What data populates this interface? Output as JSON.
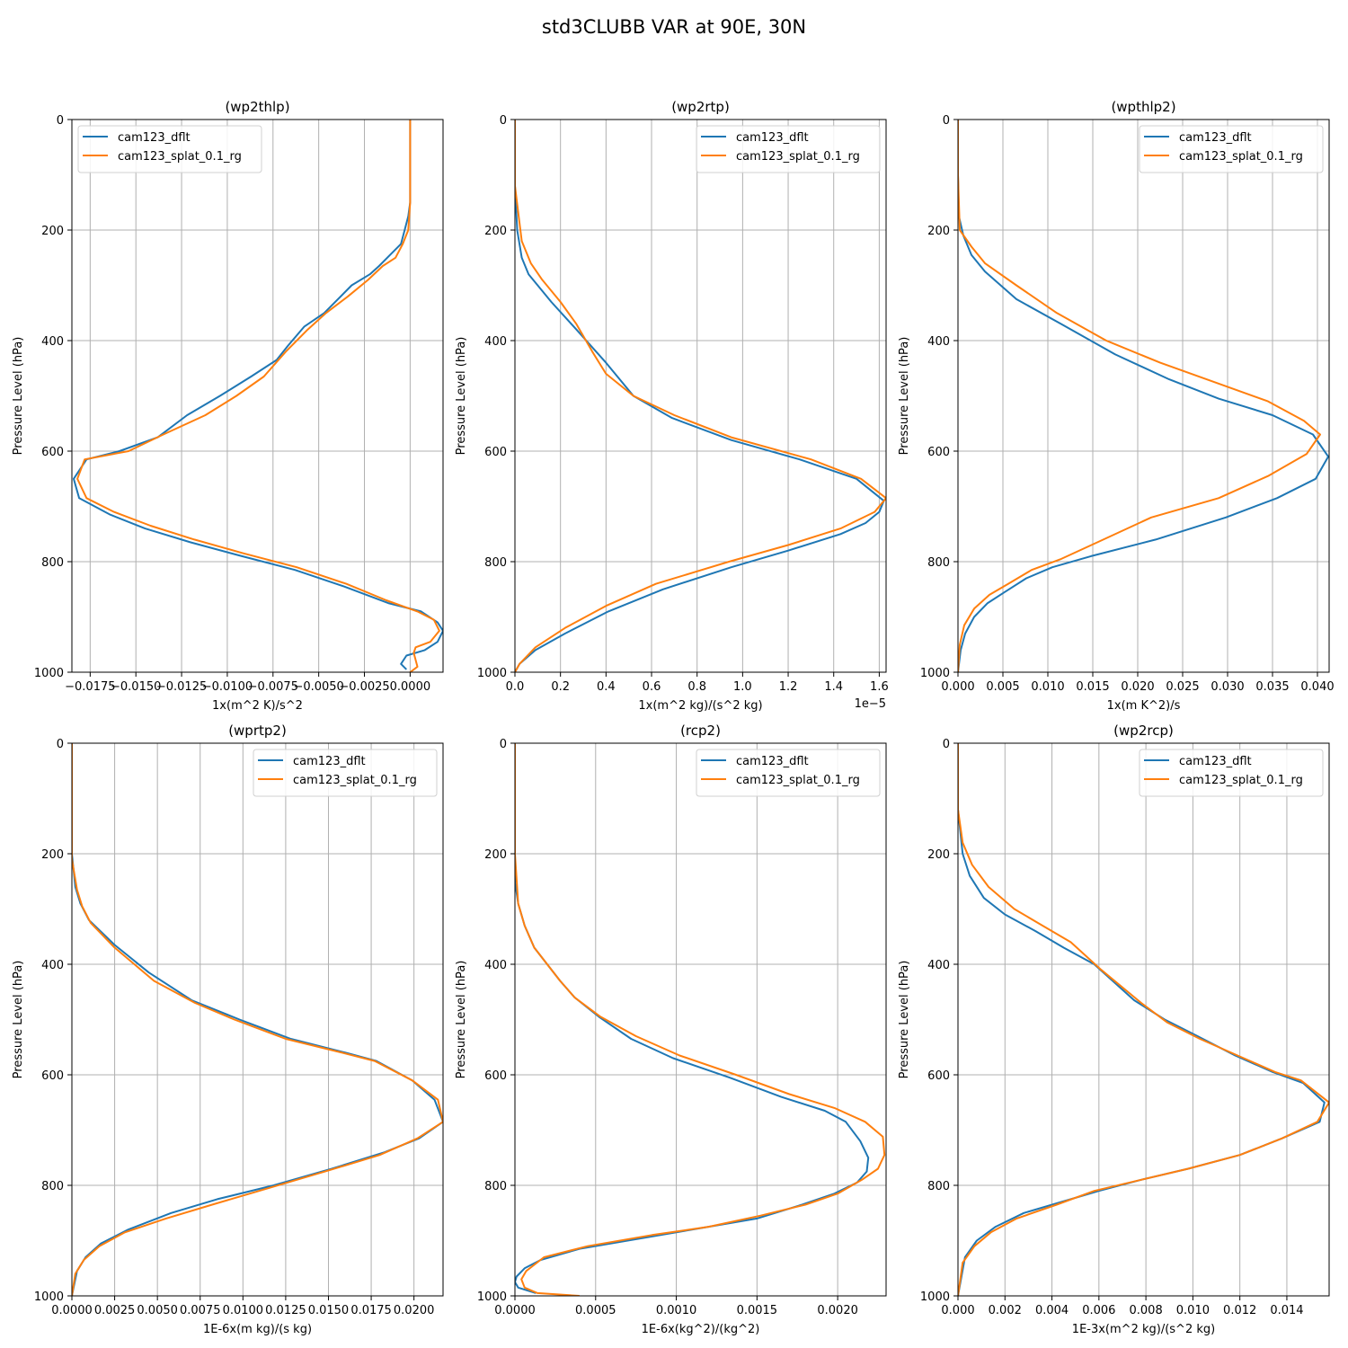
{
  "figure": {
    "suptitle": "std3CLUBB VAR at 90E, 30N"
  },
  "colors": {
    "cam123_dflt": "#1f77b4",
    "cam123_splat_0.1_rg": "#ff7f0e",
    "grid": "#b0b0b0"
  },
  "chart_data": [
    {
      "type": "line",
      "title": "(wp2thlp)",
      "xlabel": "1x(m^2 K)/s^2",
      "ylabel": "Pressure Level (hPa)",
      "xlim": [
        -0.0185,
        0.0018
      ],
      "ylim": [
        1000,
        0
      ],
      "grid": true,
      "legend": "top-left",
      "xticks": [
        -0.0175,
        -0.015,
        -0.0125,
        -0.01,
        -0.0075,
        -0.005,
        -0.0025,
        0
      ],
      "xtick_labels": [
        "−0.0175",
        "−0.0150",
        "−0.0125",
        "−0.0100",
        "−0.0075",
        "−0.0050",
        "−0.0025",
        "0.0000"
      ],
      "offset_text": "",
      "yticks": [
        0,
        200,
        400,
        600,
        800,
        1000
      ],
      "series": [
        {
          "name": "cam123_dflt",
          "color": "#1f77b4",
          "x": [
            0.0,
            0.0,
            0.0,
            -0.0001,
            -0.0003,
            -0.0005,
            -0.0011,
            -0.0017,
            -0.0022,
            -0.0032,
            -0.0047,
            -0.0058,
            -0.0067,
            -0.0073,
            -0.0087,
            -0.0104,
            -0.0122,
            -0.0138,
            -0.0159,
            -0.0177,
            -0.0184,
            -0.0181,
            -0.0164,
            -0.0145,
            -0.012,
            -0.0092,
            -0.0063,
            -0.0036,
            -0.0012,
            0.0006,
            0.0015,
            0.0018,
            0.0015,
            0.0008,
            -0.0002,
            -0.0005,
            -0.0002
          ],
          "p": [
            0,
            100,
            150,
            175,
            200,
            225,
            245,
            265,
            280,
            300,
            350,
            375,
            410,
            435,
            465,
            500,
            535,
            575,
            600,
            615,
            650,
            685,
            715,
            740,
            765,
            790,
            815,
            845,
            875,
            890,
            910,
            925,
            945,
            960,
            970,
            985,
            995
          ]
        },
        {
          "name": "cam123_splat_0.1_rg",
          "color": "#ff7f0e",
          "x": [
            0.0,
            0.0,
            0.0,
            -0.0001,
            -0.0004,
            -0.0008,
            -0.0015,
            -0.0023,
            -0.0034,
            -0.0046,
            -0.0056,
            -0.0068,
            -0.008,
            -0.0095,
            -0.0112,
            -0.0135,
            -0.0154,
            -0.0178,
            -0.0182,
            -0.0177,
            -0.0162,
            -0.0142,
            -0.0118,
            -0.0091,
            -0.0062,
            -0.0035,
            -0.0013,
            0.0004,
            0.0013,
            0.0016,
            0.0011,
            0.0003,
            0.0002,
            0.0004,
            0.0
          ],
          "p": [
            0,
            100,
            150,
            200,
            225,
            250,
            265,
            290,
            320,
            350,
            380,
            420,
            465,
            500,
            535,
            570,
            600,
            615,
            650,
            685,
            710,
            735,
            760,
            785,
            810,
            840,
            870,
            890,
            905,
            925,
            945,
            955,
            965,
            990,
            1000
          ]
        }
      ]
    },
    {
      "type": "line",
      "title": "(wp2rtp)",
      "xlabel": "1x(m^2 kg)/(s^2 kg)",
      "ylabel": "Pressure Level (hPa)",
      "xlim": [
        0,
        1.63
      ],
      "ylim": [
        1000,
        0
      ],
      "grid": true,
      "legend": "top-right",
      "xticks": [
        0,
        0.2,
        0.4,
        0.6,
        0.8,
        1.0,
        1.2,
        1.4,
        1.6
      ],
      "xtick_labels": [
        "0.0",
        "0.2",
        "0.4",
        "0.6",
        "0.8",
        "1.0",
        "1.2",
        "1.4",
        "1.6"
      ],
      "offset_text": "1e−5",
      "yticks": [
        0,
        200,
        400,
        600,
        800,
        1000
      ],
      "series": [
        {
          "name": "cam123_dflt",
          "color": "#1f77b4",
          "x": [
            0.0,
            0.0,
            0.01,
            0.03,
            0.06,
            0.1,
            0.16,
            0.27,
            0.4,
            0.52,
            0.69,
            0.95,
            1.25,
            1.5,
            1.62,
            1.6,
            1.54,
            1.43,
            1.2,
            0.95,
            0.65,
            0.41,
            0.22,
            0.09,
            0.02,
            0.0
          ],
          "p": [
            0,
            120,
            200,
            250,
            280,
            300,
            330,
            380,
            440,
            500,
            540,
            580,
            615,
            650,
            690,
            710,
            730,
            750,
            780,
            810,
            850,
            890,
            930,
            960,
            985,
            1000
          ]
        },
        {
          "name": "cam123_splat_0.1_rg",
          "color": "#ff7f0e",
          "x": [
            0.0,
            0.0,
            0.03,
            0.07,
            0.12,
            0.2,
            0.27,
            0.34,
            0.4,
            0.52,
            0.7,
            0.95,
            1.3,
            1.52,
            1.63,
            1.58,
            1.43,
            1.2,
            0.94,
            0.62,
            0.4,
            0.22,
            0.09,
            0.02,
            0.0
          ],
          "p": [
            0,
            120,
            220,
            260,
            290,
            330,
            370,
            420,
            460,
            500,
            535,
            575,
            615,
            650,
            685,
            710,
            740,
            770,
            800,
            840,
            880,
            920,
            955,
            985,
            1000
          ]
        }
      ]
    },
    {
      "type": "line",
      "title": "(wpthlp2)",
      "xlabel": "1x(m K^2)/s",
      "ylabel": "Pressure Level (hPa)",
      "xlim": [
        0,
        0.0413
      ],
      "ylim": [
        1000,
        0
      ],
      "grid": true,
      "legend": "top-right",
      "xticks": [
        0,
        0.005,
        0.01,
        0.015,
        0.02,
        0.025,
        0.03,
        0.035,
        0.04
      ],
      "xtick_labels": [
        "0.000",
        "0.005",
        "0.010",
        "0.015",
        "0.020",
        "0.025",
        "0.030",
        "0.035",
        "0.040"
      ],
      "offset_text": "",
      "yticks": [
        0,
        200,
        400,
        600,
        800,
        1000
      ],
      "series": [
        {
          "name": "cam123_dflt",
          "color": "#1f77b4",
          "x": [
            0.0,
            0.0,
            0.0001,
            0.0006,
            0.0015,
            0.003,
            0.0065,
            0.0115,
            0.0175,
            0.0235,
            0.029,
            0.035,
            0.0395,
            0.0412,
            0.0398,
            0.0355,
            0.0298,
            0.022,
            0.0148,
            0.0105,
            0.0076,
            0.0052,
            0.0033,
            0.0018,
            0.0008,
            0.0003,
            0.0
          ],
          "p": [
            0,
            100,
            175,
            210,
            245,
            275,
            325,
            370,
            425,
            470,
            505,
            535,
            570,
            610,
            650,
            685,
            720,
            760,
            790,
            810,
            830,
            855,
            875,
            900,
            930,
            960,
            1000
          ]
        },
        {
          "name": "cam123_splat_0.1_rg",
          "color": "#ff7f0e",
          "x": [
            0.0,
            0.0,
            0.0002,
            0.0015,
            0.003,
            0.0065,
            0.011,
            0.0165,
            0.0225,
            0.0285,
            0.0345,
            0.0385,
            0.0403,
            0.0388,
            0.0345,
            0.029,
            0.0215,
            0.0155,
            0.0115,
            0.0082,
            0.0056,
            0.0035,
            0.0018,
            0.0007,
            0.0002,
            0.0
          ],
          "p": [
            0,
            100,
            200,
            230,
            260,
            300,
            350,
            400,
            440,
            475,
            510,
            545,
            570,
            605,
            645,
            685,
            720,
            765,
            795,
            815,
            840,
            860,
            885,
            915,
            950,
            1000
          ]
        }
      ]
    },
    {
      "type": "line",
      "title": "(wprtp2)",
      "xlabel": "1E-6x(m kg)/(s kg)",
      "ylabel": "Pressure Level (hPa)",
      "xlim": [
        0,
        0.0217
      ],
      "ylim": [
        1000,
        0
      ],
      "grid": true,
      "legend": "top-right",
      "xticks": [
        0,
        0.0025,
        0.005,
        0.0075,
        0.01,
        0.0125,
        0.015,
        0.0175,
        0.02
      ],
      "xtick_labels": [
        "0.0000",
        "0.0025",
        "0.0050",
        "0.0075",
        "0.0100",
        "0.0125",
        "0.0150",
        "0.0175",
        "0.0200"
      ],
      "offset_text": "",
      "yticks": [
        0,
        200,
        400,
        600,
        800,
        1000
      ],
      "series": [
        {
          "name": "cam123_dflt",
          "color": "#1f77b4",
          "x": [
            0.0,
            0.0,
            0.0002,
            0.0005,
            0.001,
            0.0025,
            0.0045,
            0.007,
            0.0098,
            0.0128,
            0.016,
            0.0178,
            0.0199,
            0.0212,
            0.0217,
            0.0203,
            0.0183,
            0.0152,
            0.0118,
            0.0085,
            0.0058,
            0.0033,
            0.0017,
            0.0008,
            0.0003,
            0.0
          ],
          "p": [
            0,
            200,
            260,
            290,
            320,
            365,
            415,
            465,
            500,
            535,
            560,
            575,
            610,
            645,
            685,
            715,
            740,
            770,
            800,
            825,
            850,
            880,
            905,
            930,
            955,
            1000
          ]
        },
        {
          "name": "cam123_splat_0.1_rg",
          "color": "#ff7f0e",
          "x": [
            0.0,
            0.0,
            0.0003,
            0.0006,
            0.0011,
            0.0025,
            0.0048,
            0.0072,
            0.0095,
            0.0125,
            0.0158,
            0.0177,
            0.0199,
            0.0214,
            0.0217,
            0.0202,
            0.018,
            0.0148,
            0.0115,
            0.0082,
            0.0055,
            0.0031,
            0.0016,
            0.0007,
            0.0002,
            0.0
          ],
          "p": [
            0,
            210,
            265,
            295,
            325,
            370,
            430,
            470,
            500,
            535,
            560,
            575,
            610,
            645,
            685,
            715,
            745,
            775,
            805,
            835,
            860,
            885,
            910,
            935,
            960,
            1000
          ]
        }
      ]
    },
    {
      "type": "line",
      "title": "(rcp2)",
      "xlabel": "1E-6x(kg^2)/(kg^2)",
      "ylabel": "Pressure Level (hPa)",
      "xlim": [
        0,
        0.0023
      ],
      "ylim": [
        1000,
        0
      ],
      "grid": true,
      "legend": "top-right",
      "xticks": [
        0,
        0.0005,
        0.001,
        0.0015,
        0.002
      ],
      "xtick_labels": [
        "0.0000",
        "0.0005",
        "0.0010",
        "0.0015",
        "0.0020"
      ],
      "offset_text": "",
      "yticks": [
        0,
        200,
        400,
        600,
        800,
        1000
      ],
      "series": [
        {
          "name": "cam123_dflt",
          "color": "#1f77b4",
          "x": [
            0.0,
            0.0,
            0.0,
            2e-05,
            6e-05,
            0.00012,
            0.0002,
            0.00028,
            0.00037,
            0.00052,
            0.00072,
            0.00098,
            0.00133,
            0.00165,
            0.00192,
            0.00205,
            0.00214,
            0.00219,
            0.00218,
            0.00212,
            0.00198,
            0.00178,
            0.0015,
            0.0012,
            0.0008,
            0.0004,
            0.00016,
            6e-05,
            1e-05,
            0.0,
            2e-05,
            0.00013
          ],
          "p": [
            0,
            200,
            250,
            290,
            330,
            370,
            400,
            430,
            460,
            495,
            535,
            570,
            605,
            640,
            665,
            685,
            720,
            750,
            775,
            795,
            815,
            835,
            860,
            875,
            895,
            915,
            935,
            950,
            965,
            975,
            985,
            995
          ]
        },
        {
          "name": "cam123_splat_0.1_rg",
          "color": "#ff7f0e",
          "x": [
            0.0,
            0.0,
            2e-05,
            6e-05,
            0.00012,
            0.0002,
            0.00028,
            0.00037,
            0.00053,
            0.00075,
            0.00102,
            0.00137,
            0.0017,
            0.00198,
            0.00217,
            0.00228,
            0.00229,
            0.00225,
            0.00215,
            0.002,
            0.0018,
            0.00152,
            0.0012,
            0.00085,
            0.00045,
            0.00018,
            7e-05,
            4e-05,
            6e-05,
            0.00014,
            0.0004
          ],
          "p": [
            0,
            200,
            290,
            330,
            370,
            400,
            430,
            460,
            495,
            530,
            565,
            600,
            635,
            660,
            685,
            712,
            745,
            770,
            790,
            815,
            835,
            855,
            875,
            890,
            910,
            930,
            955,
            970,
            985,
            995,
            1000
          ]
        }
      ]
    },
    {
      "type": "line",
      "title": "(wp2rcp)",
      "xlabel": "1E-3x(m^2 kg)/(s^2 kg)",
      "ylabel": "Pressure Level (hPa)",
      "xlim": [
        0,
        0.0158
      ],
      "ylim": [
        1000,
        0
      ],
      "grid": true,
      "legend": "top-right",
      "xticks": [
        0,
        0.002,
        0.004,
        0.006,
        0.008,
        0.01,
        0.012,
        0.014
      ],
      "xtick_labels": [
        "0.000",
        "0.002",
        "0.004",
        "0.006",
        "0.008",
        "0.010",
        "0.012",
        "0.014"
      ],
      "offset_text": "",
      "yticks": [
        0,
        200,
        400,
        600,
        800,
        1000
      ],
      "series": [
        {
          "name": "cam123_dflt",
          "color": "#1f77b4",
          "x": [
            0.0,
            0.0,
            0.0002,
            0.0005,
            0.0011,
            0.002,
            0.0033,
            0.0045,
            0.0058,
            0.0075,
            0.0088,
            0.0102,
            0.0118,
            0.0134,
            0.0147,
            0.0156,
            0.0154,
            0.0138,
            0.012,
            0.0098,
            0.0078,
            0.006,
            0.0044,
            0.0028,
            0.0016,
            0.0008,
            0.0003,
            0.0
          ],
          "p": [
            0,
            120,
            200,
            240,
            280,
            310,
            340,
            370,
            400,
            465,
            500,
            530,
            565,
            595,
            615,
            650,
            685,
            715,
            745,
            770,
            790,
            810,
            830,
            850,
            875,
            900,
            930,
            1000
          ]
        },
        {
          "name": "cam123_splat_0.1_rg",
          "color": "#ff7f0e",
          "x": [
            0.0,
            0.0,
            0.0002,
            0.0006,
            0.0013,
            0.0024,
            0.0036,
            0.0048,
            0.0061,
            0.0078,
            0.0089,
            0.0103,
            0.0119,
            0.0135,
            0.0146,
            0.0158,
            0.0153,
            0.0138,
            0.012,
            0.0098,
            0.0078,
            0.0058,
            0.0042,
            0.0025,
            0.0014,
            0.0007,
            0.0002,
            0.0
          ],
          "p": [
            0,
            120,
            180,
            220,
            260,
            300,
            330,
            360,
            410,
            470,
            505,
            535,
            565,
            595,
            610,
            650,
            685,
            715,
            745,
            770,
            790,
            810,
            835,
            860,
            885,
            910,
            940,
            1000
          ]
        }
      ]
    }
  ]
}
